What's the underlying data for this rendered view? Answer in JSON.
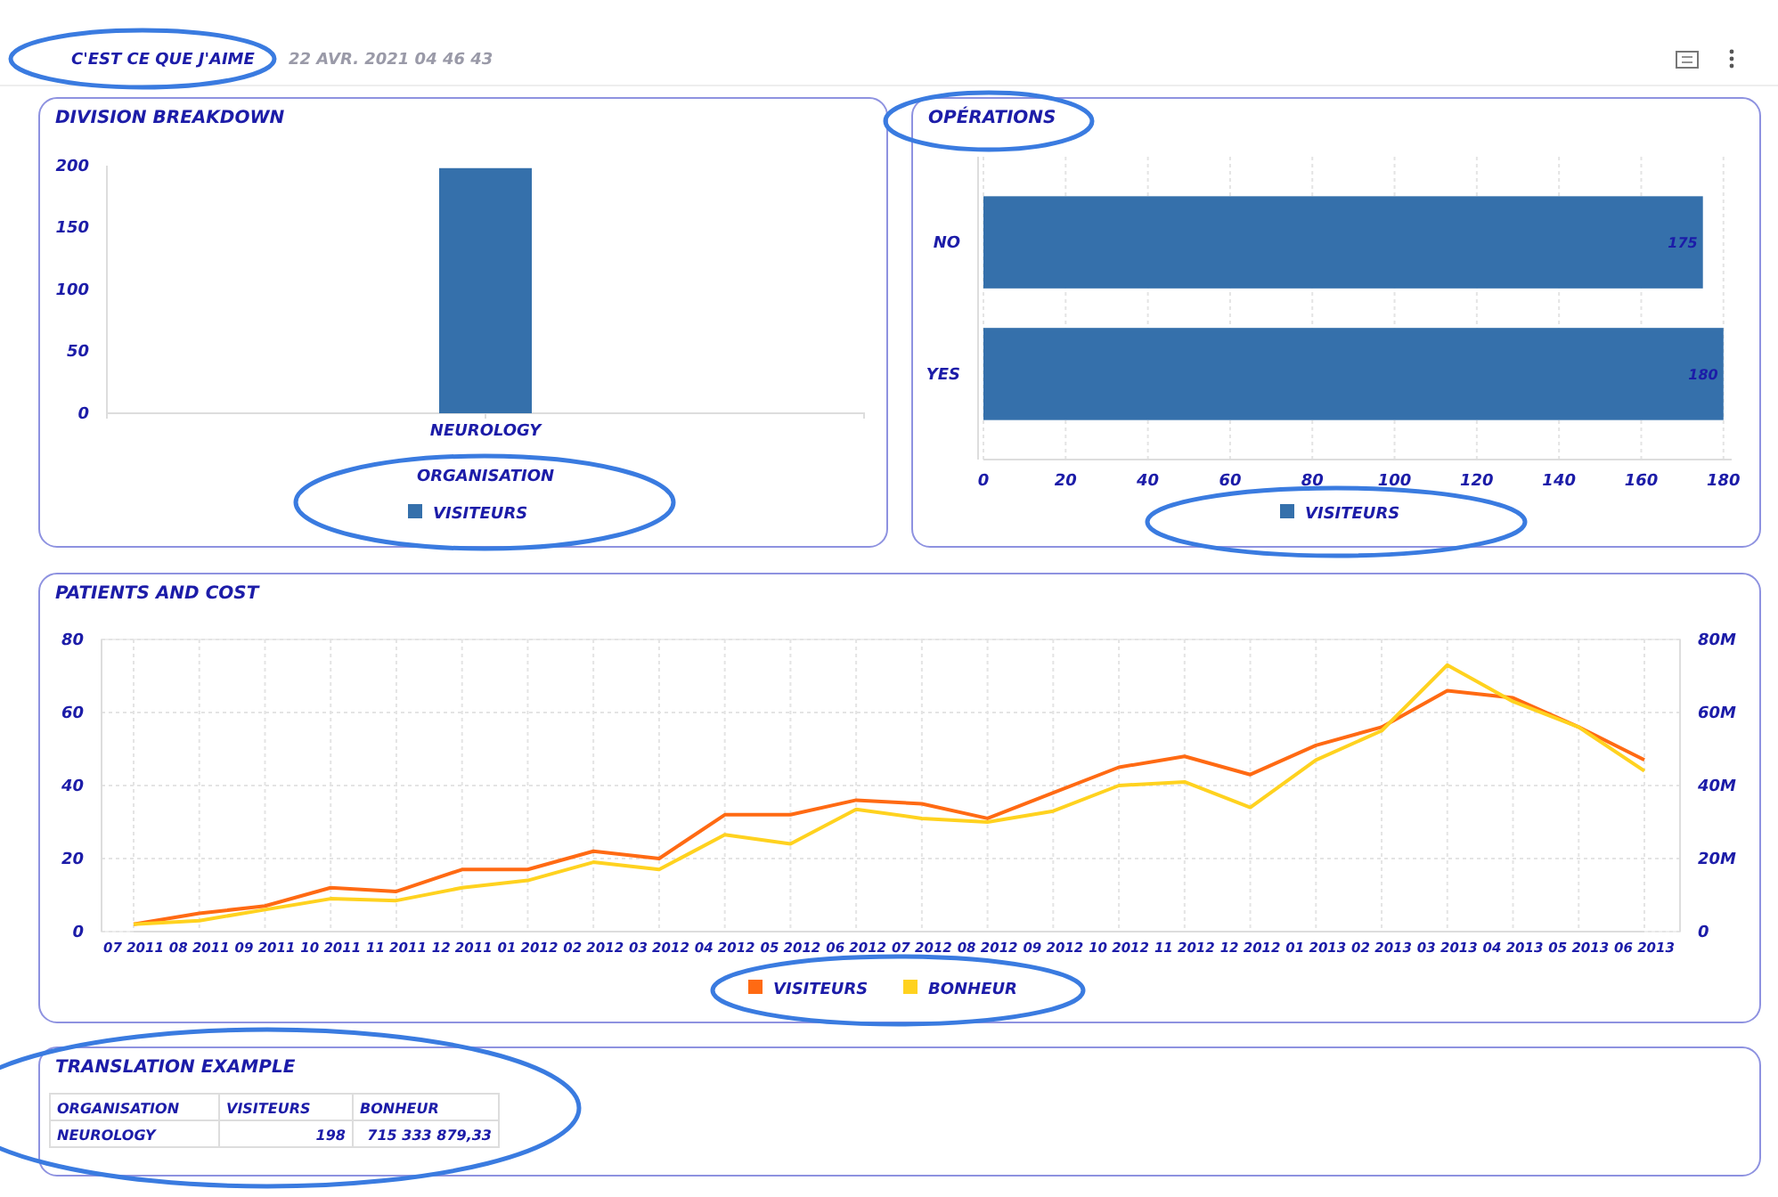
{
  "chart_data": [
    {
      "type": "other",
      "title": "C'EST CE QUE J'AIME",
      "subtitle": "22 AVR. 2021 04 46 43"
    },
    {
      "type": "bar",
      "title": "DIVISION BREAKDOWN",
      "xlabel": "ORGANISATION",
      "categories": [
        "NEUROLOGY"
      ],
      "series": [
        {
          "name": "VISITEURS",
          "color": "#3570ab",
          "values": [
            198
          ]
        }
      ],
      "ylim": [
        0,
        200
      ],
      "yticks": [
        0,
        50,
        100,
        150,
        200
      ],
      "grid": false,
      "legend": "bottom"
    },
    {
      "type": "bar",
      "orientation": "horizontal",
      "title": "OPÉRATIONS",
      "categories": [
        "NO",
        "YES"
      ],
      "series": [
        {
          "name": "VISITEURS",
          "color": "#3570ab",
          "values": [
            175,
            180
          ]
        }
      ],
      "xlim": [
        0,
        182
      ],
      "xticks": [
        0,
        20,
        40,
        60,
        80,
        100,
        120,
        140,
        160,
        180
      ],
      "grid": "x",
      "data_labels": true,
      "legend": "bottom"
    },
    {
      "type": "line",
      "title": "PATIENTS AND COST",
      "categories": [
        "07 2011",
        "08 2011",
        "09 2011",
        "10 2011",
        "11 2011",
        "12 2011",
        "01 2012",
        "02 2012",
        "03 2012",
        "04 2012",
        "05 2012",
        "06 2012",
        "07 2012",
        "08 2012",
        "09 2012",
        "10 2012",
        "11 2012",
        "12 2012",
        "01 2013",
        "02 2013",
        "03 2013",
        "04 2013",
        "05 2013",
        "06 2013"
      ],
      "series": [
        {
          "name": "VISITEURS",
          "color": "#ff6a13",
          "values": [
            2,
            5,
            7,
            12,
            11,
            17,
            17,
            22,
            20,
            32,
            32,
            36,
            35,
            31,
            38,
            45,
            48,
            43,
            51,
            56,
            66,
            64,
            56,
            47
          ]
        },
        {
          "name": "BONHEUR",
          "color": "#ffd21f",
          "axis": "y2",
          "values": [
            2000000,
            3000000,
            6000000,
            9000000,
            8500000,
            12000000,
            14000000,
            19000000,
            17000000,
            26500000,
            24000000,
            33500000,
            31000000,
            30000000,
            33000000,
            40000000,
            41000000,
            34000000,
            47000000,
            55000000,
            73000000,
            63000000,
            56000000,
            44000000
          ]
        }
      ],
      "ylim": [
        0,
        80
      ],
      "yticks": [
        0,
        20,
        40,
        60,
        80
      ],
      "y2lim": [
        0,
        80000000
      ],
      "y2ticks": [
        0,
        {
          "value": 20000000,
          "label": "20M"
        },
        {
          "value": 40000000,
          "label": "40M"
        },
        {
          "value": 60000000,
          "label": "60M"
        },
        {
          "value": 80000000,
          "label": "80M"
        }
      ],
      "grid": true,
      "legend": "bottom",
      "marker": "none",
      "line_style": "solid"
    },
    {
      "type": "other",
      "title": "TRANSLATION EXAMPLE",
      "annotations": [
        "ORGANISATION",
        "VISITEURS",
        "BONHEUR",
        "NEUROLOGY",
        "198",
        "715 333 879,33"
      ]
    }
  ]
}
